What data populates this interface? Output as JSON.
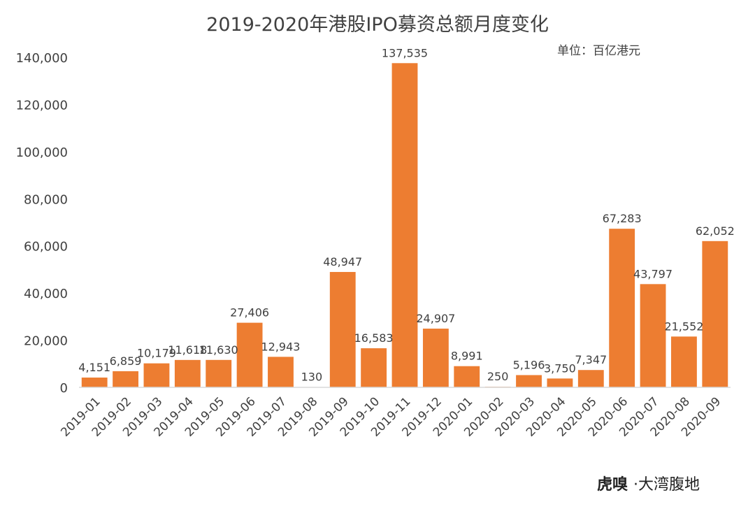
{
  "chart_data": {
    "type": "bar",
    "title": "2019-2020年港股IPO募资总额月度变化",
    "unit_label": "单位：百亿港元",
    "categories": [
      "2019-01",
      "2019-02",
      "2019-03",
      "2019-04",
      "2019-05",
      "2019-06",
      "2019-07",
      "2019-08",
      "2019-09",
      "2019-10",
      "2019-11",
      "2019-12",
      "2020-01",
      "2020-02",
      "2020-03",
      "2020-04",
      "2020-05",
      "2020-06",
      "2020-07",
      "2020-08",
      "2020-09"
    ],
    "values": [
      4151,
      6859,
      10179,
      11618,
      11630,
      27406,
      12943,
      130,
      48947,
      16583,
      137535,
      24907,
      8991,
      250,
      5196,
      3750,
      7347,
      67283,
      43797,
      21552,
      62052
    ],
    "value_labels": [
      "4,151",
      "6,859",
      "10,179",
      "11,618",
      "11,630",
      "27,406",
      "12,943",
      "130",
      "48,947",
      "16,583",
      "137,535",
      "24,907",
      "8,991",
      "250",
      "5,196",
      "3,750",
      "7,347",
      "67,283",
      "43,797",
      "21,552",
      "62,052"
    ],
    "ylim": [
      0,
      140000
    ],
    "yticks": [
      0,
      20000,
      40000,
      60000,
      80000,
      100000,
      120000,
      140000
    ],
    "ytick_labels": [
      "0",
      "20,000",
      "40,000",
      "60,000",
      "80,000",
      "100,000",
      "120,000",
      "140,000"
    ],
    "xlabel": "",
    "ylabel": "",
    "grid": false,
    "bar_color": "#ED7D31"
  },
  "branding": {
    "logo_text": "虎嗅",
    "source_text": "·大湾腹地"
  }
}
